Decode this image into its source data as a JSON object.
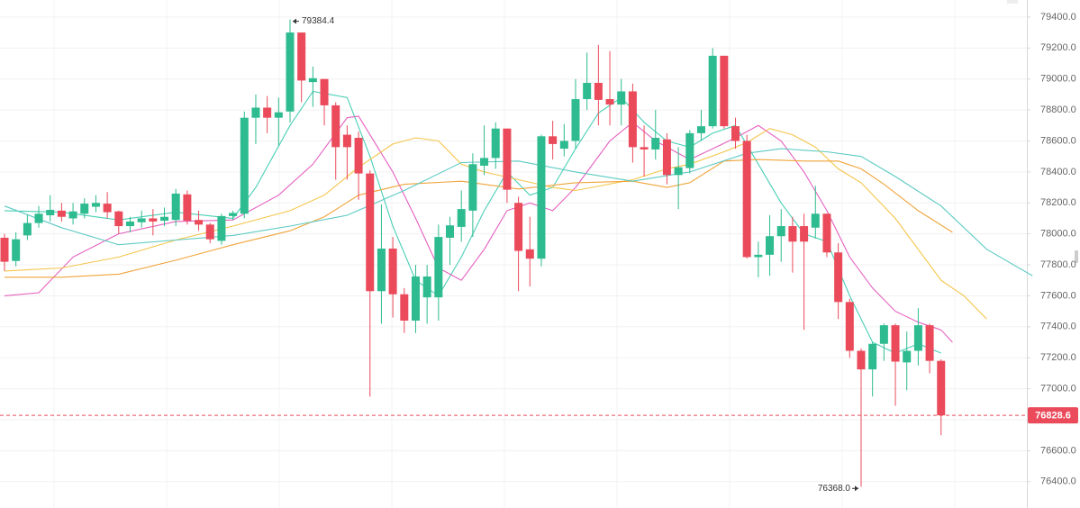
{
  "chart_data": {
    "type": "candlestick",
    "up_color": "#2dbb8f",
    "down_color": "#ea4a5a",
    "ylim": [
      76230,
      79510
    ],
    "yticks": [
      {
        "value": 76400,
        "label": "76400.0"
      },
      {
        "value": 76600,
        "label": "76600.0"
      },
      {
        "value": 76800,
        "label": "76800.0"
      },
      {
        "value": 77000,
        "label": "77000.0"
      },
      {
        "value": 77200,
        "label": "77200.0"
      },
      {
        "value": 77400,
        "label": "77400.0"
      },
      {
        "value": 77600,
        "label": "77600.0"
      },
      {
        "value": 77800,
        "label": "77800.0"
      },
      {
        "value": 78000,
        "label": "78000.0"
      },
      {
        "value": 78200,
        "label": "78200.0"
      },
      {
        "value": 78400,
        "label": "78400.0"
      },
      {
        "value": 78600,
        "label": "78600.0"
      },
      {
        "value": 78800,
        "label": "78800.0"
      },
      {
        "value": 79000,
        "label": "79000.0"
      },
      {
        "value": 79200,
        "label": "79200.0"
      },
      {
        "value": 79400,
        "label": "79400.0"
      }
    ],
    "grid": true,
    "open": [
      77975,
      77825,
      77990,
      78070,
      78120,
      78150,
      78100,
      78130,
      78175,
      78195,
      78145,
      78050,
      78075,
      78100,
      78085,
      78090,
      78255,
      78090,
      78060,
      77955,
      78115,
      78130,
      78750,
      78815,
      78750,
      78790,
      79300,
      78980,
      79000,
      78830,
      78640,
      78620,
      78390,
      77630,
      77905,
      77610,
      77440,
      77590,
      77590,
      77975,
      78045,
      78150,
      78440,
      78490,
      78680,
      78200,
      77900,
      77840,
      78630,
      78550,
      78600,
      78870,
      78975,
      78870,
      78835,
      78920,
      78560,
      78545,
      78610,
      78380,
      78425,
      78650,
      78695,
      79150,
      78695,
      78600,
      77850,
      77865,
      77985,
      78050,
      78050,
      78040,
      78130,
      77880,
      77560,
      77245,
      77125,
      77290,
      77410,
      77170,
      77245,
      77410,
      77180
    ],
    "high": [
      78000,
      78010,
      78120,
      78180,
      78250,
      78200,
      78200,
      78230,
      78250,
      78270,
      78150,
      78110,
      78150,
      78160,
      78170,
      78290,
      78280,
      78150,
      78070,
      78130,
      78150,
      78790,
      78900,
      78890,
      78880,
      79384.4,
      79300,
      79080,
      79000,
      78850,
      78700,
      78660,
      78410,
      78190,
      77980,
      77650,
      77800,
      77800,
      78060,
      78110,
      78280,
      78520,
      78700,
      78720,
      78680,
      78240,
      78110,
      78640,
      78730,
      78710,
      79000,
      79170,
      79220,
      79180,
      79000,
      78970,
      78700,
      78800,
      78650,
      78560,
      78670,
      78800,
      79200,
      79150,
      78750,
      78640,
      77950,
      78120,
      78160,
      78110,
      78130,
      78310,
      78130,
      77940,
      77580,
      77260,
      77300,
      77420,
      77420,
      77370,
      77520,
      77420,
      77190
    ],
    "low": [
      77760,
      77790,
      77960,
      78040,
      78080,
      78080,
      78060,
      78100,
      78140,
      78100,
      78000,
      78010,
      78040,
      77990,
      78050,
      78050,
      78060,
      78020,
      77940,
      77930,
      78090,
      78100,
      78580,
      78650,
      78570,
      78720,
      78850,
      78820,
      78700,
      78350,
      78350,
      78220,
      76950,
      77420,
      77460,
      77360,
      77360,
      77420,
      77440,
      77800,
      77950,
      77980,
      78380,
      78420,
      78200,
      77630,
      77660,
      77790,
      78480,
      78500,
      78550,
      78800,
      78700,
      78700,
      78700,
      78460,
      78370,
      78480,
      78320,
      78160,
      78390,
      78600,
      78680,
      78680,
      78550,
      77840,
      77720,
      77730,
      77820,
      77750,
      77380,
      77970,
      77850,
      77450,
      77200,
      76368,
      76950,
      77180,
      76890,
      76990,
      77150,
      77100,
      76700
    ],
    "close": [
      77820,
      77965,
      78070,
      78130,
      78155,
      78110,
      78145,
      78195,
      78200,
      78140,
      78050,
      78080,
      78100,
      78080,
      78110,
      78260,
      78085,
      78060,
      77965,
      78115,
      78135,
      78750,
      78815,
      78750,
      78785,
      79300,
      78990,
      79005,
      78830,
      78560,
      78560,
      78390,
      77630,
      77905,
      77610,
      77440,
      77725,
      77725,
      77980,
      78055,
      78160,
      78450,
      78490,
      78680,
      78285,
      77890,
      77840,
      78630,
      78580,
      78600,
      78870,
      78975,
      78865,
      78835,
      78920,
      78560,
      78545,
      78620,
      78380,
      78430,
      78650,
      78695,
      79150,
      78695,
      78600,
      77850,
      77865,
      77985,
      78050,
      77950,
      77950,
      78130,
      77880,
      77560,
      77245,
      77125,
      77290,
      77410,
      77175,
      77245,
      77410,
      77180,
      76828.6
    ],
    "lines": [
      {
        "color": "#49cfb6",
        "x": [
          0,
          5,
          10,
          15,
          20,
          22,
          25,
          27,
          30,
          32,
          34,
          36,
          38,
          40,
          42,
          44,
          46,
          48,
          50,
          52,
          54,
          56,
          58,
          60,
          62,
          64,
          66,
          68,
          70,
          72,
          74,
          76,
          78,
          80,
          82
        ],
        "values": [
          78150,
          78140,
          78090,
          78140,
          78100,
          78300,
          78700,
          78920,
          78880,
          78500,
          78050,
          77700,
          77600,
          77850,
          78150,
          78400,
          78250,
          78300,
          78550,
          78780,
          78880,
          78720,
          78600,
          78560,
          78650,
          78700,
          78450,
          78200,
          78000,
          77950,
          77600,
          77300,
          77230,
          77290,
          77230
        ]
      },
      {
        "color": "#e45fbf",
        "x": [
          0,
          3,
          6,
          10,
          15,
          20,
          24,
          27,
          30,
          31,
          34,
          36,
          38,
          40,
          42,
          44,
          46,
          48,
          50,
          53,
          55,
          57,
          60,
          62,
          64,
          66,
          68,
          70,
          72,
          74,
          76,
          78,
          80,
          82,
          83
        ],
        "values": [
          77600,
          77620,
          77850,
          78000,
          78080,
          78090,
          78250,
          78450,
          78750,
          78760,
          78400,
          78100,
          77780,
          77700,
          77900,
          78150,
          78200,
          78150,
          78300,
          78600,
          78720,
          78600,
          78480,
          78550,
          78620,
          78700,
          78600,
          78400,
          78150,
          77850,
          77650,
          77500,
          77430,
          77380,
          77300
        ]
      },
      {
        "color": "#f5c54a",
        "x": [
          0,
          5,
          10,
          15,
          20,
          25,
          28,
          31,
          34,
          36,
          38,
          40,
          42,
          45,
          48,
          50,
          55,
          58,
          60,
          63,
          65,
          67,
          69,
          71,
          73,
          75,
          78,
          80,
          82,
          84,
          86
        ],
        "values": [
          77760,
          77780,
          77850,
          77960,
          78050,
          78150,
          78250,
          78430,
          78580,
          78620,
          78600,
          78450,
          78400,
          78350,
          78300,
          78280,
          78350,
          78420,
          78450,
          78530,
          78590,
          78680,
          78640,
          78560,
          78420,
          78330,
          78100,
          77900,
          77700,
          77600,
          77450
        ]
      },
      {
        "color": "#f0a43a",
        "x": [
          0,
          5,
          10,
          15,
          20,
          25,
          28,
          31,
          35,
          40,
          45,
          50,
          55,
          58,
          60,
          63,
          66,
          70,
          73,
          75,
          77,
          80,
          83
        ],
        "values": [
          77720,
          77720,
          77740,
          77830,
          77930,
          78020,
          78110,
          78250,
          78320,
          78340,
          78290,
          78330,
          78340,
          78300,
          78330,
          78470,
          78480,
          78470,
          78470,
          78420,
          78320,
          78150,
          78010
        ]
      },
      {
        "color": "#5ccac3",
        "x": [
          0,
          5,
          10,
          15,
          20,
          25,
          30,
          35,
          40,
          45,
          50,
          55,
          60,
          65,
          68,
          72,
          75,
          78,
          82,
          86,
          90
        ],
        "values": [
          78180,
          78040,
          77930,
          77960,
          77990,
          78050,
          78120,
          78280,
          78460,
          78470,
          78400,
          78340,
          78400,
          78520,
          78550,
          78530,
          78500,
          78370,
          78180,
          77900,
          77730
        ]
      }
    ],
    "annotations": [
      {
        "value": 79384.4,
        "label": "79384.4"
      },
      {
        "value": 76368,
        "label": "76368.0"
      },
      {
        "value": 76828.6,
        "label": "76828.6"
      }
    ]
  }
}
